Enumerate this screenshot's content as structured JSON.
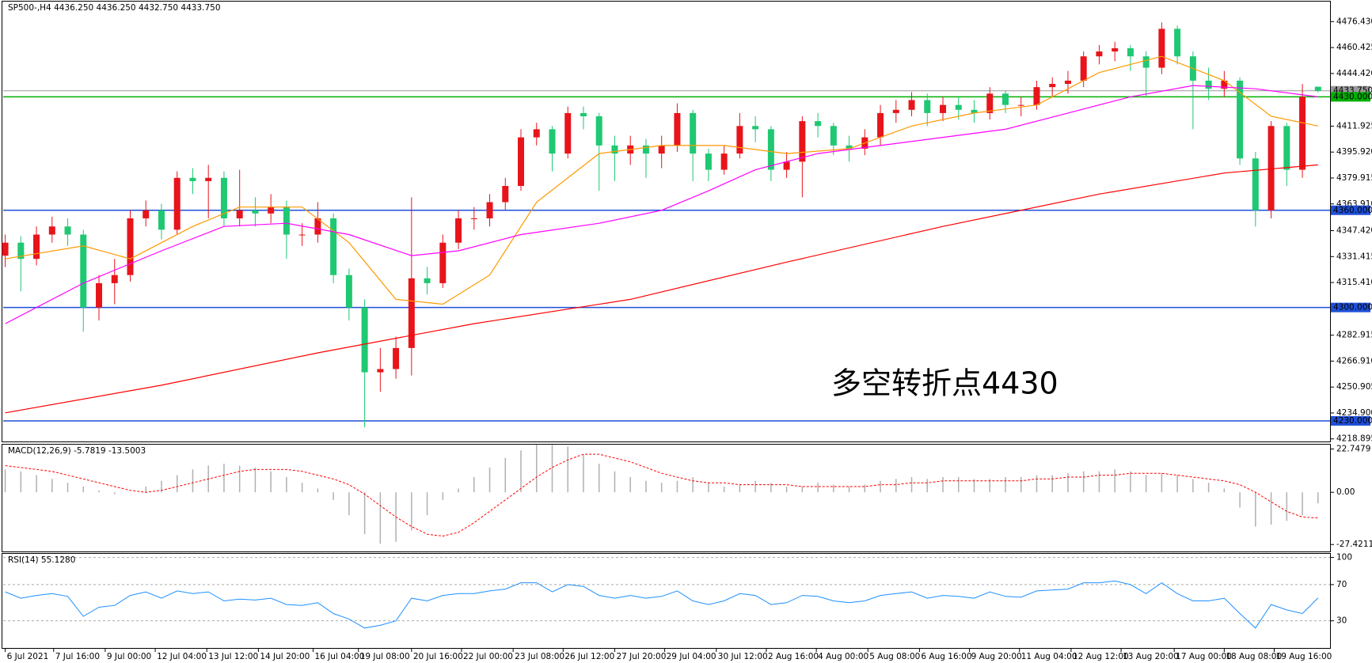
{
  "chart_data": {
    "type": "candlestick",
    "header": "SP500-,H4  4436.250 4436.250 4432.750 4433.750",
    "annotation": "多空转折点4430",
    "annotation_color": "#e8141b",
    "up_color": "#e8141b",
    "down_color": "#1fc872",
    "xlim": [
      -0.13,
      84.77
    ],
    "ylim": [
      4217.3,
      4488.8
    ],
    "yticks": [
      {
        "value": 4476.43,
        "label": "4476.430"
      },
      {
        "value": 4460.425,
        "label": "4460.425"
      },
      {
        "value": 4444.42,
        "label": "4444.420"
      },
      {
        "value": 4411.925,
        "label": "4411.925"
      },
      {
        "value": 4395.92,
        "label": "4395.920"
      },
      {
        "value": 4379.915,
        "label": "4379.915"
      },
      {
        "value": 4363.91,
        "label": "4363.910"
      },
      {
        "value": 4347.42,
        "label": "4347.420"
      },
      {
        "value": 4331.415,
        "label": "4331.415"
      },
      {
        "value": 4315.41,
        "label": "4315.410"
      },
      {
        "value": 4282.915,
        "label": "4282.915"
      },
      {
        "value": 4266.91,
        "label": "4266.910"
      },
      {
        "value": 4250.905,
        "label": "4250.905"
      },
      {
        "value": 4234.9,
        "label": "4234.900"
      },
      {
        "value": 4218.895,
        "label": "4218.895"
      }
    ],
    "levels": [
      {
        "value": 4430,
        "label": "4430.000",
        "color": "#00b000"
      },
      {
        "value": 4360,
        "label": "4360.000",
        "color": "#1f4fd8"
      },
      {
        "value": 4300,
        "label": "4300.000",
        "color": "#1f4fd8"
      },
      {
        "value": 4230,
        "label": "4230.000",
        "color": "#1f4fd8"
      }
    ],
    "last_price": {
      "value": 4433.75,
      "label": "4433.750",
      "color": "#999999"
    },
    "xticks": [
      {
        "value": 0,
        "label": "6 Jul 2021"
      },
      {
        "value": 3.1,
        "label": "7 Jul 16:00"
      },
      {
        "value": 6.4,
        "label": "9 Jul 00:00"
      },
      {
        "value": 9.6,
        "label": "12 Jul 04:00"
      },
      {
        "value": 12.9,
        "label": "13 Jul 12:00"
      },
      {
        "value": 16.2,
        "label": "14 Jul 20:00"
      },
      {
        "value": 19.7,
        "label": "16 Jul 04:00"
      },
      {
        "value": 22.6,
        "label": "19 Jul 08:00"
      },
      {
        "value": 26.0,
        "label": "20 Jul 16:00"
      },
      {
        "value": 29.2,
        "label": "22 Jul 00:00"
      },
      {
        "value": 32.5,
        "label": "23 Jul 08:00"
      },
      {
        "value": 35.7,
        "label": "26 Jul 12:00"
      },
      {
        "value": 39.0,
        "label": "27 Jul 20:00"
      },
      {
        "value": 42.2,
        "label": "29 Jul 04:00"
      },
      {
        "value": 45.5,
        "label": "30 Jul 12:00"
      },
      {
        "value": 48.7,
        "label": "2 Aug 16:00"
      },
      {
        "value": 51.9,
        "label": "4 Aug 00:00"
      },
      {
        "value": 55.2,
        "label": "5 Aug 08:00"
      },
      {
        "value": 58.5,
        "label": "6 Aug 16:00"
      },
      {
        "value": 61.7,
        "label": "9 Aug 20:00"
      },
      {
        "value": 64.9,
        "label": "11 Aug 04:00"
      },
      {
        "value": 68.2,
        "label": "12 Aug 12:00"
      },
      {
        "value": 71.4,
        "label": "13 Aug 20:00"
      },
      {
        "value": 74.8,
        "label": "17 Aug 00:00"
      },
      {
        "value": 78.0,
        "label": "18 Aug 08:00"
      },
      {
        "value": 81.2,
        "label": "19 Aug 16:00"
      }
    ],
    "open": [
      4332,
      4340,
      4330,
      4345,
      4350,
      4345,
      4300,
      4315,
      4320,
      4355,
      4360,
      4348,
      4380,
      4378,
      4380,
      4355,
      4360,
      4358,
      4362,
      4345,
      4345,
      4355,
      4320,
      4300,
      4260,
      4262,
      4275,
      4318,
      4315,
      4340,
      4355,
      4355,
      4365,
      4375,
      4405,
      4410,
      4395,
      4420,
      4418,
      4400,
      4395,
      4400,
      4395,
      4400,
      4420,
      4395,
      4385,
      4395,
      4412,
      4410,
      4385,
      4390,
      4415,
      4412,
      4400,
      4398,
      4405,
      4420,
      4422,
      4428,
      4420,
      4425,
      4422,
      4420,
      4432,
      4425,
      4425,
      4436,
      4438,
      4440,
      4455,
      4458,
      4460,
      4455,
      4448,
      4472,
      4455,
      4440,
      4435,
      4440,
      4392,
      4360,
      4412,
      4385,
      4436.25
    ],
    "high": [
      4345,
      4344,
      4350,
      4356,
      4355,
      4348,
      4320,
      4330,
      4360,
      4366,
      4364,
      4384,
      4386,
      4388,
      4384,
      4385,
      4368,
      4370,
      4366,
      4352,
      4365,
      4358,
      4324,
      4305,
      4275,
      4282,
      4368,
      4325,
      4345,
      4360,
      4362,
      4370,
      4380,
      4410,
      4414,
      4412,
      4424,
      4424,
      4420,
      4406,
      4406,
      4404,
      4406,
      4426,
      4422,
      4398,
      4400,
      4420,
      4418,
      4412,
      4396,
      4418,
      4420,
      4414,
      4406,
      4410,
      4425,
      4428,
      4433,
      4432,
      4430,
      4430,
      4428,
      4436,
      4434,
      4430,
      4440,
      4442,
      4446,
      4458,
      4462,
      4464,
      4462,
      4458,
      4476,
      4474,
      4458,
      4448,
      4446,
      4442,
      4396,
      4415,
      4414,
      4438,
      4436.25
    ],
    "low": [
      4325,
      4310,
      4326,
      4340,
      4338,
      4285,
      4292,
      4302,
      4316,
      4350,
      4342,
      4345,
      4370,
      4355,
      4350,
      4350,
      4350,
      4352,
      4330,
      4338,
      4340,
      4315,
      4292,
      4226,
      4248,
      4256,
      4258,
      4308,
      4312,
      4336,
      4348,
      4350,
      4360,
      4372,
      4400,
      4384,
      4392,
      4410,
      4372,
      4378,
      4388,
      4380,
      4386,
      4396,
      4378,
      4378,
      4382,
      4392,
      4402,
      4378,
      4380,
      4368,
      4405,
      4394,
      4390,
      4394,
      4400,
      4414,
      4418,
      4412,
      4415,
      4416,
      4414,
      4416,
      4420,
      4418,
      4422,
      4430,
      4432,
      4436,
      4450,
      4452,
      4446,
      4430,
      4444,
      4450,
      4410,
      4428,
      4430,
      4388,
      4350,
      4355,
      4375,
      4380,
      4432.75
    ],
    "close": [
      4340,
      4330,
      4345,
      4350,
      4345,
      4300,
      4315,
      4320,
      4355,
      4360,
      4348,
      4380,
      4378,
      4380,
      4355,
      4360,
      4358,
      4362,
      4345,
      4345,
      4355,
      4320,
      4300,
      4260,
      4262,
      4275,
      4318,
      4315,
      4340,
      4355,
      4355,
      4365,
      4375,
      4405,
      4410,
      4395,
      4420,
      4418,
      4400,
      4395,
      4400,
      4395,
      4400,
      4420,
      4395,
      4385,
      4395,
      4412,
      4410,
      4385,
      4390,
      4415,
      4412,
      4400,
      4398,
      4405,
      4420,
      4422,
      4428,
      4420,
      4425,
      4422,
      4420,
      4432,
      4425,
      4425,
      4436,
      4438,
      4440,
      4455,
      4458,
      4460,
      4455,
      4448,
      4472,
      4455,
      4440,
      4435,
      4440,
      4392,
      4360,
      4412,
      4385,
      4430,
      4433.75
    ],
    "ma_lines": [
      {
        "color": "#ff9900",
        "x": [
          0,
          5,
          8,
          12,
          15,
          19,
          22,
          25,
          28,
          31,
          34,
          38,
          42,
          46,
          50,
          54,
          58,
          62,
          66,
          70,
          74,
          78,
          81,
          84
        ],
        "values": [
          4330,
          4338,
          4330,
          4350,
          4362,
          4362,
          4340,
          4305,
          4302,
          4320,
          4365,
          4395,
          4400,
          4400,
          4395,
          4398,
          4412,
          4420,
          4425,
          4445,
          4455,
          4440,
          4418,
          4412
        ]
      },
      {
        "color": "#ff00ff",
        "x": [
          0,
          5,
          10,
          14,
          18,
          22,
          26,
          29,
          33,
          38,
          42,
          45,
          48,
          52,
          56,
          60,
          64,
          68,
          72,
          76,
          80,
          84
        ],
        "values": [
          4290,
          4315,
          4335,
          4350,
          4352,
          4345,
          4332,
          4335,
          4345,
          4352,
          4360,
          4372,
          4385,
          4395,
          4400,
          4405,
          4410,
          4420,
          4430,
          4437,
          4435,
          4430
        ]
      },
      {
        "color": "#ff0000",
        "x": [
          0,
          10,
          20,
          30,
          40,
          50,
          60,
          70,
          78,
          84
        ],
        "values": [
          4235,
          4252,
          4272,
          4290,
          4305,
          4328,
          4350,
          4370,
          4383,
          4388
        ]
      }
    ],
    "macd": {
      "title": "MACD(12,26,9) -5.7819 -13.5003",
      "ylim": [
        -31.07,
        25.03
      ],
      "yticks": [
        22.7479,
        {
          "value": 0,
          "label": "0.00"
        },
        -27.4211
      ],
      "histogram_color": "#b0b0b0",
      "signal_color": "#ff0000",
      "histogram": [
        12,
        11,
        9,
        7,
        5,
        3,
        1,
        -1,
        0,
        3,
        6,
        9,
        12,
        14,
        15,
        14,
        13,
        11,
        8,
        5,
        2,
        -4,
        -12,
        -22,
        -27,
        -26,
        -20,
        -12,
        -4,
        2,
        8,
        13,
        18,
        22,
        25,
        25,
        24,
        20,
        15,
        11,
        8,
        6,
        5,
        6,
        8,
        5,
        3,
        4,
        6,
        5,
        3,
        3,
        5,
        4,
        3,
        4,
        6,
        7,
        8,
        7,
        8,
        8,
        7,
        7,
        8,
        8,
        9,
        9,
        10,
        11,
        11,
        12,
        11,
        9,
        10,
        9,
        7,
        5,
        2,
        -8,
        -18,
        -17,
        -15,
        -12,
        -5.7819
      ],
      "signal": [
        14,
        13,
        12,
        11,
        9,
        7,
        5,
        3,
        1,
        0,
        1,
        3,
        5,
        7,
        9,
        11,
        12,
        12,
        12,
        11,
        9,
        7,
        4,
        -1,
        -7,
        -13,
        -18,
        -22,
        -23,
        -21,
        -16,
        -10,
        -4,
        2,
        8,
        13,
        17,
        20,
        20,
        18,
        16,
        13,
        10,
        8,
        6,
        5,
        5,
        4,
        4,
        4,
        4,
        3,
        3,
        3,
        3,
        3,
        4,
        4,
        5,
        5,
        6,
        6,
        6,
        6,
        6,
        6,
        7,
        7,
        8,
        8,
        9,
        9,
        10,
        10,
        10,
        9,
        8,
        7,
        6,
        4,
        0,
        -5,
        -10,
        -13,
        -13.5003
      ]
    },
    "rsi": {
      "title": "RSI(14) 55.1280",
      "ylim": [
        0,
        104
      ],
      "yticks": [
        100,
        70,
        30
      ],
      "color": "#1e90ff",
      "values": [
        62,
        55,
        58,
        60,
        57,
        35,
        45,
        47,
        58,
        62,
        55,
        63,
        60,
        62,
        52,
        54,
        53,
        55,
        48,
        47,
        50,
        38,
        32,
        22,
        25,
        30,
        55,
        52,
        58,
        60,
        60,
        63,
        65,
        72,
        72,
        62,
        70,
        68,
        58,
        55,
        58,
        55,
        57,
        63,
        52,
        48,
        52,
        60,
        58,
        48,
        50,
        58,
        57,
        52,
        50,
        52,
        58,
        60,
        62,
        55,
        58,
        57,
        55,
        62,
        57,
        56,
        63,
        64,
        65,
        72,
        72,
        74,
        70,
        60,
        72,
        60,
        52,
        52,
        55,
        38,
        22,
        48,
        42,
        38,
        55.128
      ]
    }
  }
}
